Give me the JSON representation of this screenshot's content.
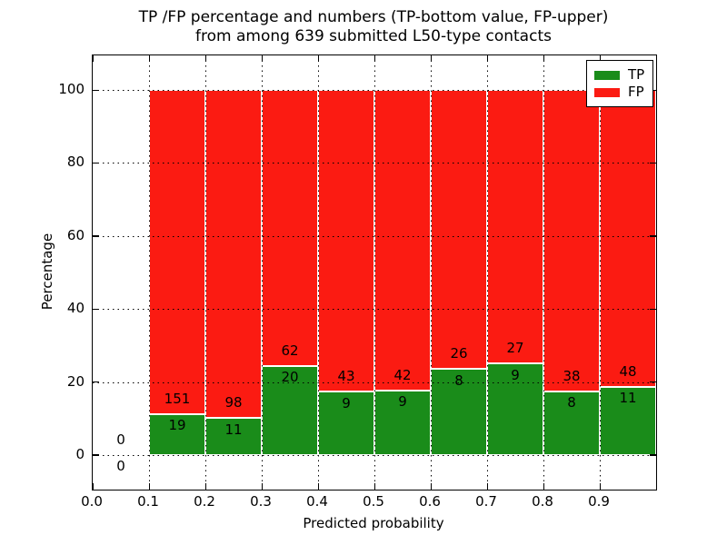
{
  "title": {
    "line1": "TP /FP percentage and numbers (TP-bottom value, FP-upper)",
    "line2": "from among 639 submitted L50-type contacts"
  },
  "axes": {
    "xlabel": "Predicted probability",
    "ylabel": "Percentage",
    "xtick_labels": [
      "0.0",
      "0.1",
      "0.2",
      "0.3",
      "0.4",
      "0.5",
      "0.6",
      "0.7",
      "0.8",
      "0.9"
    ],
    "ytick_labels": [
      "0",
      "20",
      "40",
      "60",
      "80",
      "100"
    ]
  },
  "legend": {
    "items": [
      {
        "label": "TP",
        "color": "#1a8c1a"
      },
      {
        "label": "FP",
        "color": "#fb1b12"
      }
    ]
  },
  "colors": {
    "tp": "#1a8c1a",
    "fp": "#fb1b12",
    "grid": "#000000"
  },
  "chart_data": {
    "type": "bar",
    "stacked": true,
    "normalized_to_percent_per_bin": true,
    "title": "TP /FP percentage and numbers (TP-bottom value, FP-upper) from among 639 submitted L50-type contacts",
    "xlabel": "Predicted probability",
    "ylabel": "Percentage",
    "xlim": [
      0.0,
      1.0
    ],
    "ylim": [
      -9.5,
      109.5
    ],
    "xticks": [
      0.0,
      0.1,
      0.2,
      0.3,
      0.4,
      0.5,
      0.6,
      0.7,
      0.8,
      0.9
    ],
    "yticks": [
      0,
      20,
      40,
      60,
      80,
      100
    ],
    "grid": "dotted, drawn above bars",
    "legend_position": "upper-right",
    "total_contacts": 639,
    "series": [
      {
        "name": "TP",
        "color": "#1a8c1a"
      },
      {
        "name": "FP",
        "color": "#fb1b12"
      }
    ],
    "bins": [
      {
        "x0": 0.0,
        "x1": 0.1,
        "tp": 0,
        "fp": 0
      },
      {
        "x0": 0.1,
        "x1": 0.2,
        "tp": 19,
        "fp": 151
      },
      {
        "x0": 0.2,
        "x1": 0.3,
        "tp": 11,
        "fp": 98
      },
      {
        "x0": 0.3,
        "x1": 0.4,
        "tp": 20,
        "fp": 62
      },
      {
        "x0": 0.4,
        "x1": 0.5,
        "tp": 9,
        "fp": 43
      },
      {
        "x0": 0.5,
        "x1": 0.6,
        "tp": 9,
        "fp": 42
      },
      {
        "x0": 0.6,
        "x1": 0.7,
        "tp": 8,
        "fp": 26
      },
      {
        "x0": 0.7,
        "x1": 0.8,
        "tp": 9,
        "fp": 27
      },
      {
        "x0": 0.8,
        "x1": 0.9,
        "tp": 8,
        "fp": 38
      },
      {
        "x0": 0.9,
        "x1": 1.0,
        "tp": 11,
        "fp": 48
      }
    ]
  }
}
